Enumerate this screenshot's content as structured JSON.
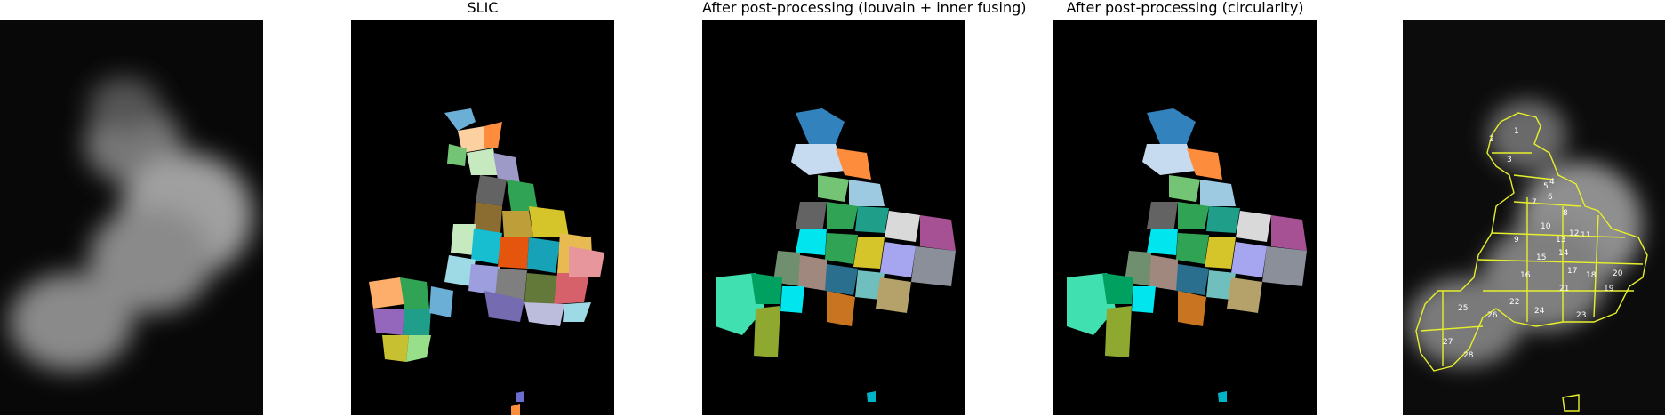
{
  "figure": {
    "panels": [
      {
        "title": ""
      },
      {
        "title": "SLIC"
      },
      {
        "title": "After post-processing (louvain + inner fusing)"
      },
      {
        "title": "After post-processing (circularity)"
      },
      {
        "title": ""
      }
    ],
    "segment_labels": [
      "1",
      "2",
      "3",
      "4",
      "5",
      "6",
      "7",
      "8",
      "9",
      "10",
      "11",
      "12",
      "13",
      "14",
      "15",
      "16",
      "17",
      "18",
      "19",
      "20",
      "21",
      "22",
      "23",
      "24",
      "25",
      "26",
      "27",
      "28"
    ],
    "colors": {
      "background": "#000000",
      "contour": "#e6f02a",
      "label": "#ffffff"
    }
  }
}
